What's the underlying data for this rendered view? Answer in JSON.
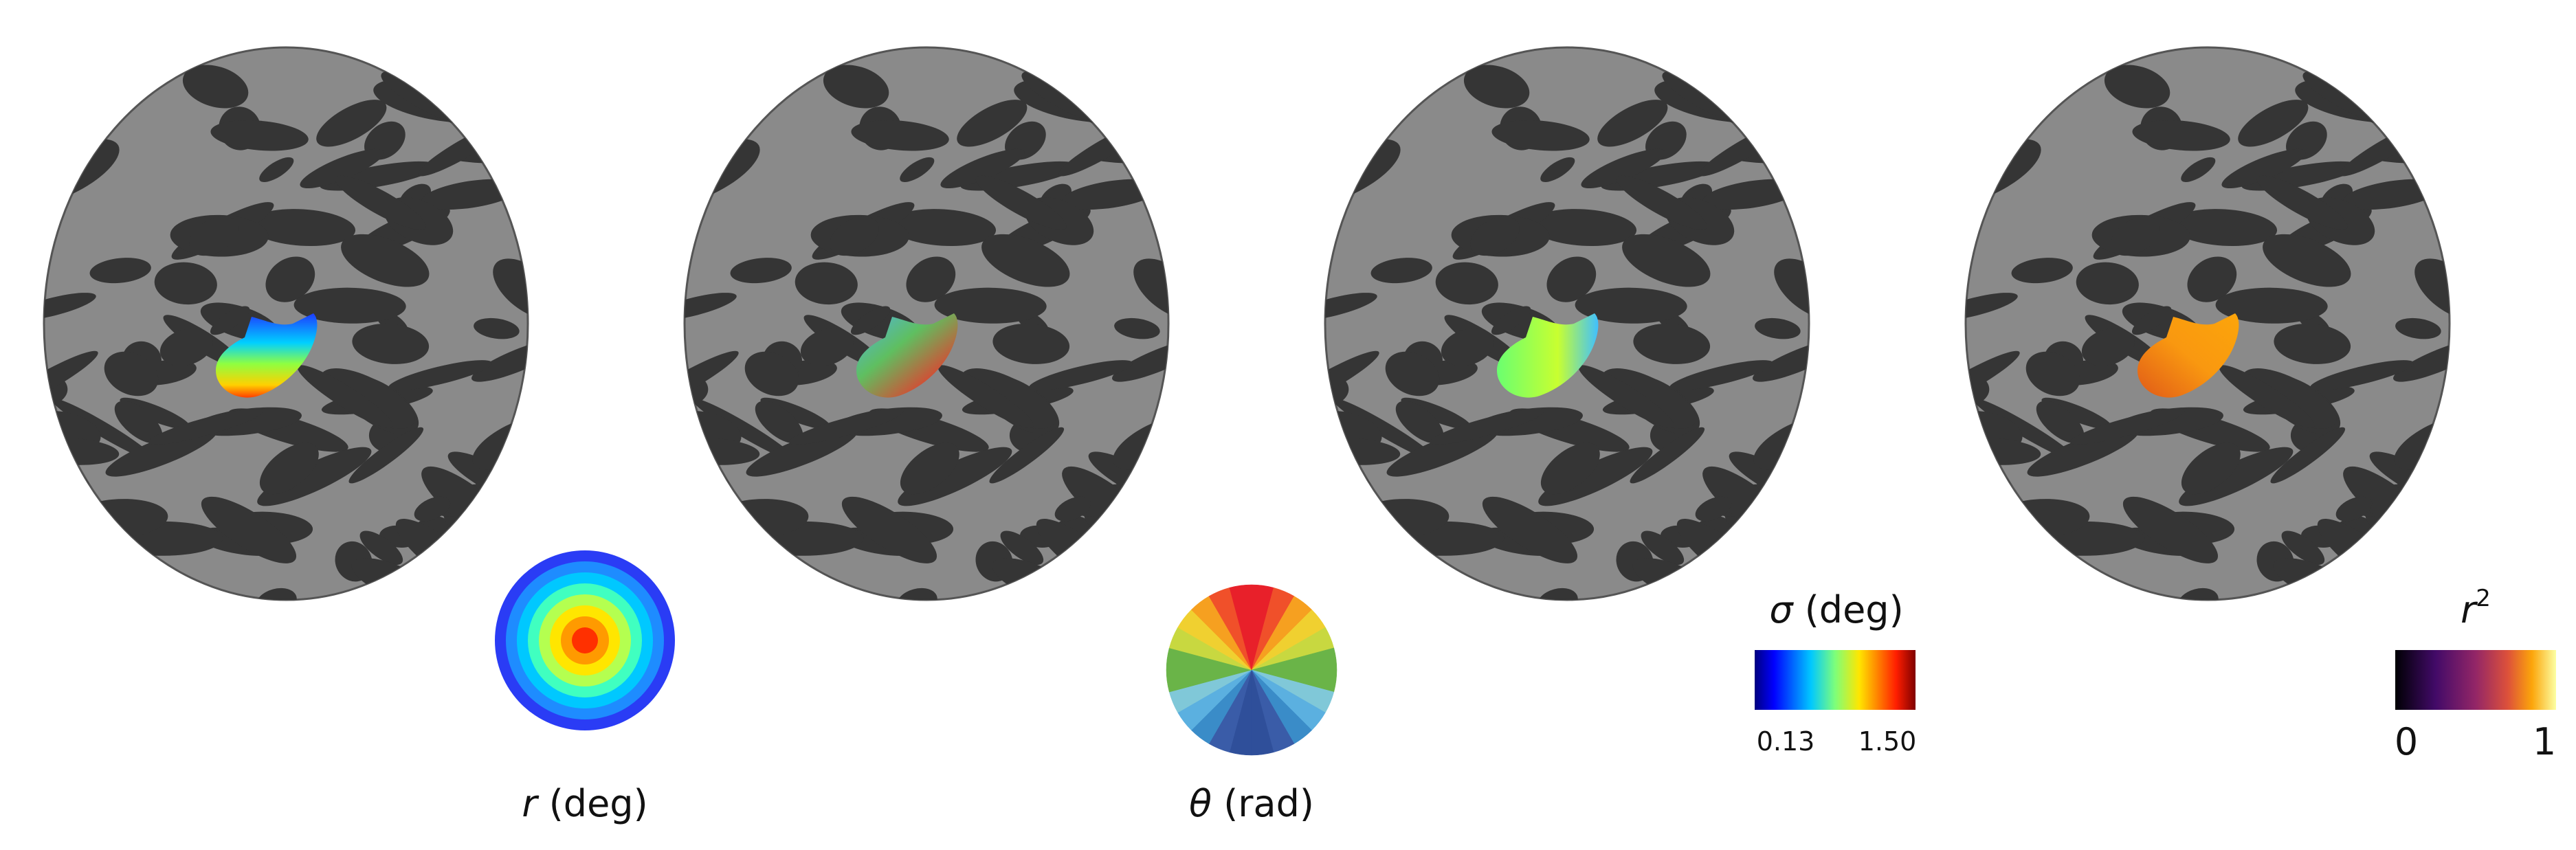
{
  "panels": [
    {
      "legend": {
        "label": {
          "symbol": "r",
          "unit": " (deg)"
        }
      }
    },
    {
      "legend": {
        "label": {
          "symbol": "θ",
          "unit": " (rad)"
        }
      }
    },
    {
      "legend": {
        "label": {
          "symbol": "σ",
          "unit": " (deg)"
        },
        "ticks": [
          "0.13",
          "1.50"
        ]
      }
    },
    {
      "legend": {
        "label": {
          "symbol": "r",
          "sup": "2"
        },
        "ticks": [
          "0",
          "1"
        ]
      }
    }
  ]
}
